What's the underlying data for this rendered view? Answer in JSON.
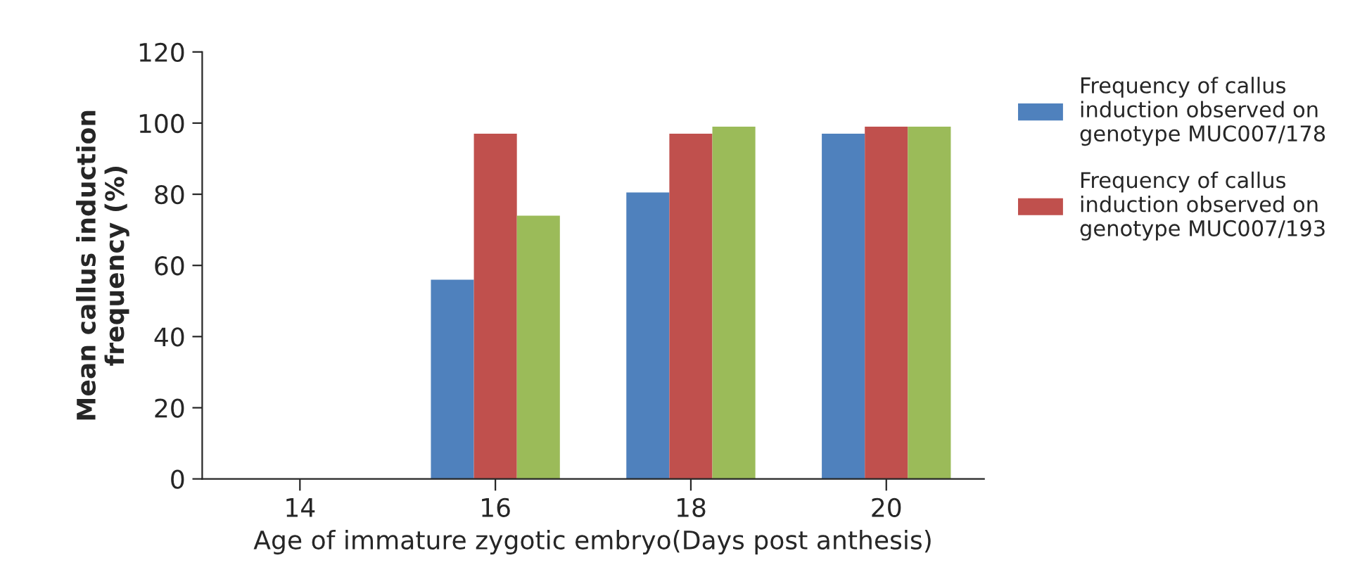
{
  "chart_data": {
    "type": "bar",
    "xlabel": "Age of immature zygotic embryo(Days post anthesis)",
    "ylabel": "Mean callus induction frequency (%)",
    "categories": [
      "14",
      "16",
      "18",
      "20"
    ],
    "series": [
      {
        "name": "Frequency of callus induction observed on genotype MUC007/178",
        "color": "#4f81bd",
        "values": [
          null,
          56,
          80.5,
          97
        ]
      },
      {
        "name": "Frequency of callus induction observed on genotype MUC007/193",
        "color": "#c0504d",
        "values": [
          null,
          97,
          97,
          99
        ]
      },
      {
        "color": "#9bbb59",
        "values": [
          null,
          74,
          99,
          99
        ]
      }
    ],
    "ylim": [
      0,
      120
    ],
    "yticks": [
      0,
      20,
      40,
      60,
      80,
      100,
      120
    ],
    "grid": false,
    "legend": "right"
  }
}
